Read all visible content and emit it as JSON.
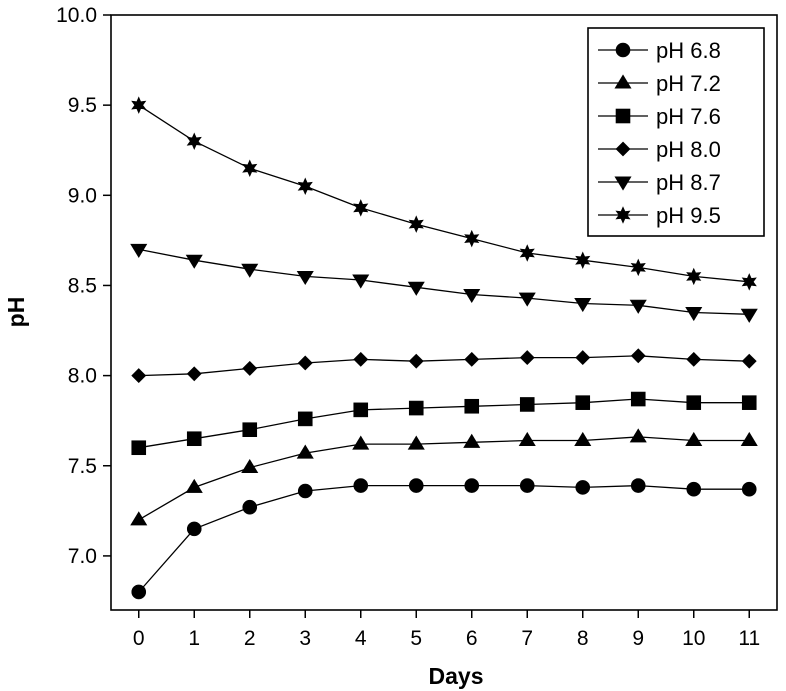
{
  "chart_data": {
    "type": "line",
    "xlabel": "Days",
    "ylabel": "pH",
    "xlim": [
      -0.5,
      11.5
    ],
    "ylim": [
      6.7,
      10.0
    ],
    "x_ticks": [
      0,
      1,
      2,
      3,
      4,
      5,
      6,
      7,
      8,
      9,
      10,
      11
    ],
    "y_ticks": [
      "7.0",
      "7.5",
      "8.0",
      "8.5",
      "9.0",
      "9.5",
      "10.0"
    ],
    "legend_position": "top-right",
    "grid": false,
    "x": [
      0,
      1,
      2,
      3,
      4,
      5,
      6,
      7,
      8,
      9,
      10,
      11
    ],
    "series": [
      {
        "name": "pH 6.8",
        "marker": "circle",
        "values": [
          6.8,
          7.15,
          7.27,
          7.36,
          7.39,
          7.39,
          7.39,
          7.39,
          7.38,
          7.39,
          7.37,
          7.37
        ]
      },
      {
        "name": "pH 7.2",
        "marker": "triangle-up",
        "values": [
          7.2,
          7.38,
          7.49,
          7.57,
          7.62,
          7.62,
          7.63,
          7.64,
          7.64,
          7.66,
          7.64,
          7.64
        ]
      },
      {
        "name": "pH 7.6",
        "marker": "square",
        "values": [
          7.6,
          7.65,
          7.7,
          7.76,
          7.81,
          7.82,
          7.83,
          7.84,
          7.85,
          7.87,
          7.85,
          7.85
        ]
      },
      {
        "name": "pH 8.0",
        "marker": "diamond",
        "values": [
          8.0,
          8.01,
          8.04,
          8.07,
          8.09,
          8.08,
          8.09,
          8.1,
          8.1,
          8.11,
          8.09,
          8.08
        ]
      },
      {
        "name": "pH 8.7",
        "marker": "triangle-down",
        "values": [
          8.7,
          8.64,
          8.59,
          8.55,
          8.53,
          8.49,
          8.45,
          8.43,
          8.4,
          8.39,
          8.35,
          8.34
        ]
      },
      {
        "name": "pH 9.5",
        "marker": "star",
        "values": [
          9.5,
          9.3,
          9.15,
          9.05,
          8.93,
          8.84,
          8.76,
          8.68,
          8.64,
          8.6,
          8.55,
          8.52
        ]
      }
    ]
  }
}
